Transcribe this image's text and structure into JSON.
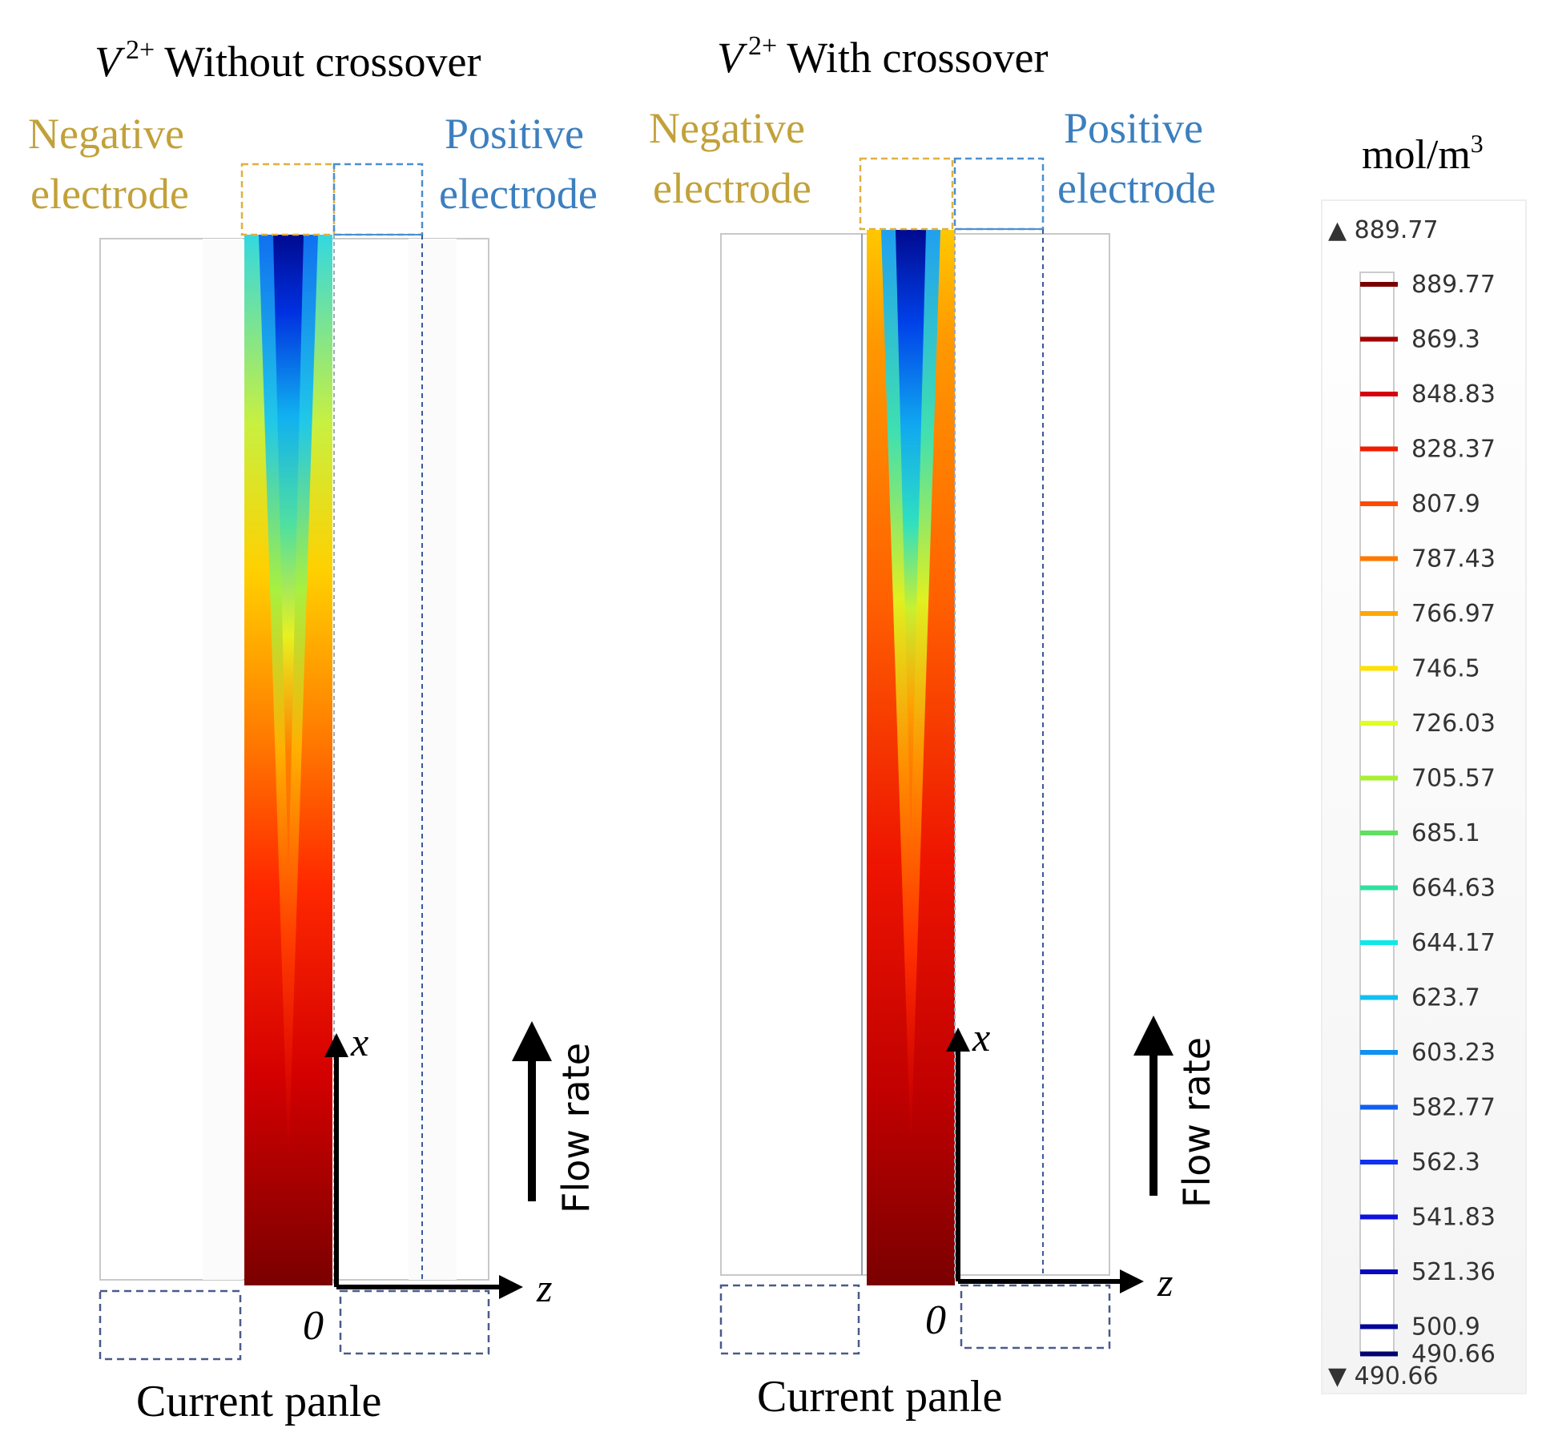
{
  "panels": [
    {
      "title_species": "V",
      "title_charge": "2+",
      "title_text": "Without crossover",
      "negative_line1": "Negative",
      "negative_line2": "electrode",
      "positive_line1": "Positive",
      "positive_line2": "electrode",
      "axis_x": "x",
      "axis_z": "z",
      "origin": "0",
      "flow_label": "Flow rate",
      "current_label": "Current panle"
    },
    {
      "title_species": "V",
      "title_charge": "2+",
      "title_text": "With crossover",
      "negative_line1": "Negative",
      "negative_line2": "electrode",
      "positive_line1": "Positive",
      "positive_line2": "electrode",
      "axis_x": "x",
      "axis_z": "z",
      "origin": "0",
      "flow_label": "Flow rate",
      "current_label": "Current panle"
    }
  ],
  "colorbar": {
    "unit": "mol/m",
    "unit_exp": "3",
    "max_marker": "▲ 889.77",
    "min_marker": "▼ 490.66",
    "ticks": [
      "889.77",
      "869.3",
      "848.83",
      "828.37",
      "807.9",
      "787.43",
      "766.97",
      "746.5",
      "726.03",
      "705.57",
      "685.1",
      "664.63",
      "644.17",
      "623.7",
      "603.23",
      "582.77",
      "562.3",
      "541.83",
      "521.36",
      "500.9",
      "490.66"
    ],
    "tick_colors": [
      "#7a0000",
      "#a50000",
      "#d40010",
      "#f01c00",
      "#ff4a00",
      "#ff7800",
      "#ffa800",
      "#ffe000",
      "#e0ff20",
      "#a8f030",
      "#60e060",
      "#30e0a0",
      "#10e8e8",
      "#10c0f0",
      "#1090f0",
      "#1060f0",
      "#1030f0",
      "#1010e0",
      "#0808c0",
      "#04049a",
      "#000070"
    ]
  },
  "colors": {
    "negative": "#c2a13a",
    "positive": "#3c7fbf",
    "neg_box": "#e0b040",
    "pos_box": "#4a8fd0",
    "current_box": "#4a5a8a"
  }
}
